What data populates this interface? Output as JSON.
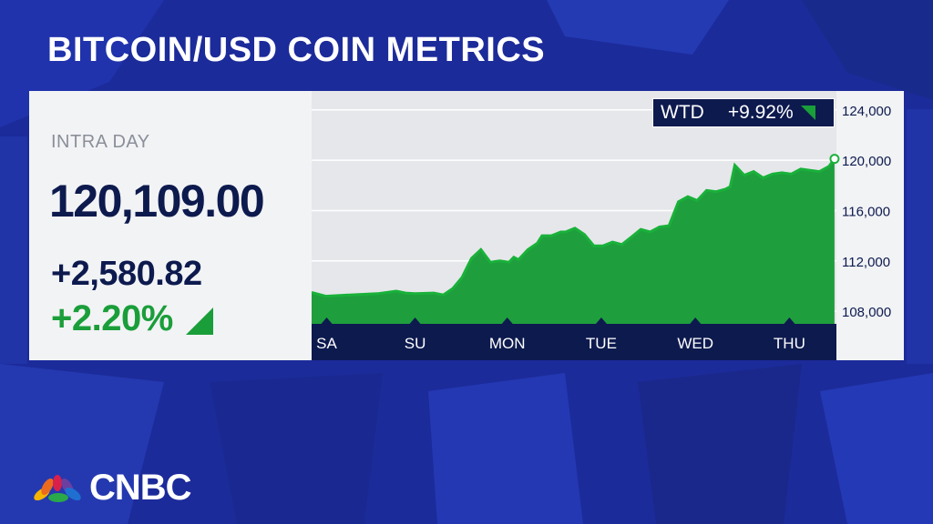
{
  "title": "BITCOIN/USD COIN METRICS",
  "quote": {
    "label": "INTRA DAY",
    "price": "120,109.00",
    "change": "+2,580.82",
    "change_pct": "+2.20%",
    "direction": "up"
  },
  "wtd": {
    "label": "WTD",
    "value": "+9.92%"
  },
  "brand": {
    "name": "CNBC"
  },
  "colors": {
    "background": "#1c2b9a",
    "title": "#ffffff",
    "positive": "#1a9e3a",
    "navy": "#0d1a4e",
    "area_fill": "#1f9e3d",
    "area_line": "#19b13a",
    "panel": "#f2f3f5",
    "chart_bg": "#e6e7ea"
  },
  "chart_data": {
    "type": "area",
    "y_ticks": [
      108000,
      112000,
      116000,
      120000,
      124000
    ],
    "y_tick_labels": [
      "108,000",
      "112,000",
      "116,000",
      "120,000",
      "124,000"
    ],
    "ylim": [
      107000,
      125500
    ],
    "x_ticks": [
      0.06,
      1.0,
      1.98,
      2.98,
      3.98,
      4.98
    ],
    "x_tick_labels": [
      "SA",
      "SU",
      "MON",
      "TUE",
      "WED",
      "THU"
    ],
    "xlim": [
      -0.1,
      5.48
    ],
    "x": [
      -0.1,
      0.05,
      0.3,
      0.6,
      0.8,
      0.9,
      1.0,
      1.2,
      1.3,
      1.4,
      1.5,
      1.6,
      1.7,
      1.8,
      1.9,
      2.0,
      2.05,
      2.1,
      2.2,
      2.3,
      2.35,
      2.45,
      2.55,
      2.6,
      2.7,
      2.8,
      2.9,
      3.0,
      3.1,
      3.2,
      3.3,
      3.4,
      3.5,
      3.6,
      3.7,
      3.8,
      3.9,
      4.0,
      4.1,
      4.2,
      4.3,
      4.35,
      4.4,
      4.5,
      4.6,
      4.7,
      4.8,
      4.85,
      4.9,
      5.0,
      5.1,
      5.2,
      5.3,
      5.4,
      5.46
    ],
    "y": [
      109500,
      109200,
      109300,
      109400,
      109600,
      109450,
      109400,
      109450,
      109300,
      109800,
      110700,
      112200,
      112900,
      111900,
      112000,
      111900,
      112300,
      112100,
      112900,
      113400,
      114000,
      114000,
      114300,
      114300,
      114600,
      114100,
      113200,
      113200,
      113500,
      113300,
      113900,
      114500,
      114300,
      114700,
      114800,
      116700,
      117100,
      116800,
      117600,
      117500,
      117700,
      117900,
      119600,
      118800,
      119100,
      118600,
      118900,
      118950,
      119000,
      118900,
      119300,
      119200,
      119100,
      119500,
      120109
    ],
    "last_value": 120109,
    "grid": true
  }
}
